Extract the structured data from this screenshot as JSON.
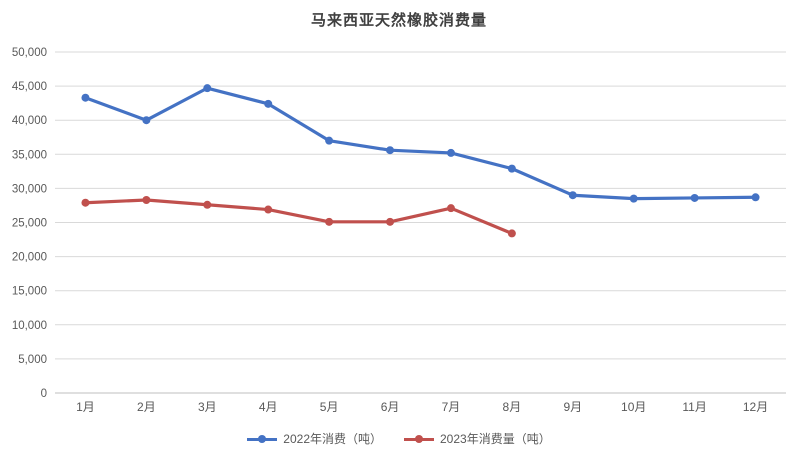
{
  "chart_data": {
    "type": "line",
    "title": "马来西亚天然橡胶消费量",
    "categories": [
      "1月",
      "2月",
      "3月",
      "4月",
      "5月",
      "6月",
      "7月",
      "8月",
      "9月",
      "10月",
      "11月",
      "12月"
    ],
    "series": [
      {
        "name": "2022年消费（吨）",
        "color": "#4472C4",
        "values": [
          43300,
          40000,
          44700,
          42400,
          37000,
          35600,
          35200,
          32900,
          29000,
          28500,
          28600,
          28700
        ]
      },
      {
        "name": "2023年消费量（吨）",
        "color": "#C0504D",
        "values": [
          27900,
          28300,
          27600,
          26900,
          25100,
          25100,
          27100,
          23400,
          null,
          null,
          null,
          null
        ]
      }
    ],
    "xlabel": "",
    "ylabel": "",
    "ylim": [
      0,
      50000
    ],
    "ytick_step": 5000,
    "ytick_labels": [
      "0",
      "5,000",
      "10,000",
      "15,000",
      "20,000",
      "25,000",
      "30,000",
      "35,000",
      "40,000",
      "45,000",
      "50,000"
    ],
    "grid": "horizontal",
    "legend_position": "bottom",
    "axis_line_color": "#BFBFBF",
    "gridline_color": "#D9D9D9",
    "tick_label_color": "#595959",
    "title_color": "#404040"
  }
}
